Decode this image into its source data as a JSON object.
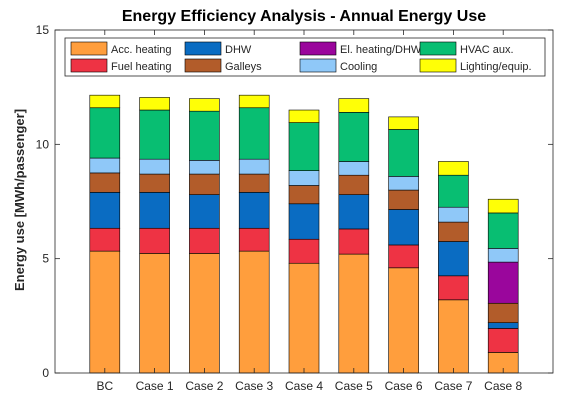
{
  "chart_data": {
    "type": "bar",
    "stacked": true,
    "title": "Energy Efficiency Analysis - Annual Energy Use",
    "xlabel": "",
    "ylabel": "Energy use [MWh/passenger]",
    "ylim": [
      0,
      15
    ],
    "yticks": [
      0,
      5,
      10,
      15
    ],
    "grid": false,
    "legend_position": "top",
    "categories": [
      "BC",
      "Case 1",
      "Case 2",
      "Case 3",
      "Case 4",
      "Case 5",
      "Case 6",
      "Case 7",
      "Case 8"
    ],
    "series": [
      {
        "name": "Acc. heating",
        "color": "#FF9E3D",
        "values": [
          5.33,
          5.23,
          5.23,
          5.33,
          4.8,
          5.2,
          4.6,
          3.2,
          0.9
        ]
      },
      {
        "name": "Fuel heating",
        "color": "#EE3344",
        "values": [
          1.0,
          1.1,
          1.1,
          1.0,
          1.05,
          1.1,
          1.0,
          1.05,
          1.05
        ]
      },
      {
        "name": "DHW",
        "color": "#0A6CC2",
        "values": [
          1.57,
          1.57,
          1.47,
          1.57,
          1.55,
          1.5,
          1.55,
          1.5,
          0.25
        ]
      },
      {
        "name": "Galleys",
        "color": "#B25C2A",
        "values": [
          0.85,
          0.8,
          0.9,
          0.8,
          0.8,
          0.85,
          0.85,
          0.85,
          0.85
        ]
      },
      {
        "name": "El. heating/DHW",
        "color": "#9A069C",
        "values": [
          0,
          0,
          0,
          0,
          0,
          0,
          0,
          0,
          1.8
        ]
      },
      {
        "name": "Cooling",
        "color": "#8FC8F8",
        "values": [
          0.65,
          0.65,
          0.6,
          0.65,
          0.65,
          0.6,
          0.6,
          0.65,
          0.6
        ]
      },
      {
        "name": "HVAC aux.",
        "color": "#08BE72",
        "values": [
          2.2,
          2.15,
          2.15,
          2.25,
          2.1,
          2.15,
          2.05,
          1.4,
          1.55
        ]
      },
      {
        "name": "Lighting/equip.",
        "color": "#FFFF06",
        "values": [
          0.55,
          0.55,
          0.55,
          0.55,
          0.55,
          0.6,
          0.55,
          0.6,
          0.6
        ]
      }
    ]
  }
}
